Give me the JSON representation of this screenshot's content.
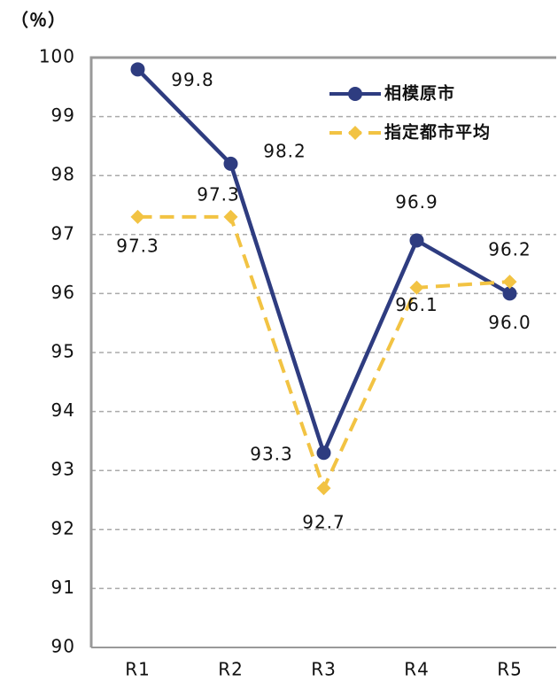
{
  "chart_data": {
    "type": "line",
    "y_label": "（％）",
    "categories": [
      "R1",
      "R2",
      "R3",
      "R4",
      "R5"
    ],
    "series": [
      {
        "name": "相模原市",
        "color": "#2e3c80",
        "marker": "circle",
        "dashed": false,
        "values": [
          99.8,
          98.2,
          93.3,
          96.9,
          96.0
        ],
        "value_labels": [
          "99.8",
          "98.2",
          "93.3",
          "96.9",
          "96.0"
        ]
      },
      {
        "name": "指定都市平均",
        "color": "#f2c343",
        "marker": "diamond",
        "dashed": true,
        "values": [
          97.3,
          97.3,
          92.7,
          96.1,
          96.2
        ],
        "value_labels": [
          "97.3",
          "97.3",
          "92.7",
          "96.1",
          "96.2"
        ]
      }
    ],
    "ylim": [
      90,
      100
    ],
    "yticks": [
      90,
      91,
      92,
      93,
      94,
      95,
      96,
      97,
      98,
      99,
      100
    ],
    "grid": true,
    "legend": "top-right"
  }
}
